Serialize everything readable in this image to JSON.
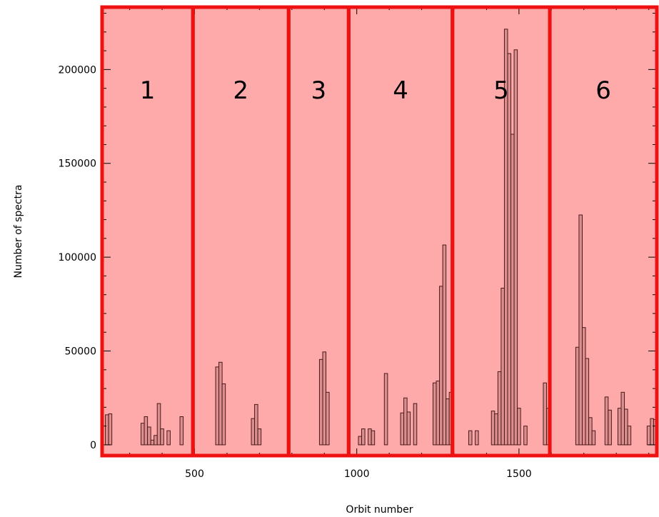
{
  "chart_data": {
    "type": "bar",
    "xlabel": "Orbit number",
    "ylabel": "Number of spectra",
    "xlim": [
      215,
      1925
    ],
    "ylim": [
      -6500,
      234000
    ],
    "xticks": [
      500,
      1000,
      1500
    ],
    "yticks": [
      0,
      50000,
      100000,
      150000,
      200000
    ],
    "bar_width": 10,
    "bars": [
      {
        "x": 230,
        "y": 16000
      },
      {
        "x": 240,
        "y": 16500
      },
      {
        "x": 340,
        "y": 11500
      },
      {
        "x": 350,
        "y": 15000
      },
      {
        "x": 360,
        "y": 9500
      },
      {
        "x": 370,
        "y": 2500
      },
      {
        "x": 380,
        "y": 5000
      },
      {
        "x": 390,
        "y": 22000
      },
      {
        "x": 400,
        "y": 8500
      },
      {
        "x": 420,
        "y": 7500
      },
      {
        "x": 460,
        "y": 15000
      },
      {
        "x": 570,
        "y": 41500
      },
      {
        "x": 580,
        "y": 44000
      },
      {
        "x": 590,
        "y": 32500
      },
      {
        "x": 680,
        "y": 14000
      },
      {
        "x": 690,
        "y": 21500
      },
      {
        "x": 700,
        "y": 8500
      },
      {
        "x": 890,
        "y": 45500
      },
      {
        "x": 900,
        "y": 49500
      },
      {
        "x": 910,
        "y": 28000
      },
      {
        "x": 1010,
        "y": 4500
      },
      {
        "x": 1020,
        "y": 8500
      },
      {
        "x": 1040,
        "y": 8500
      },
      {
        "x": 1050,
        "y": 7500
      },
      {
        "x": 1090,
        "y": 38000
      },
      {
        "x": 1140,
        "y": 17000
      },
      {
        "x": 1150,
        "y": 25000
      },
      {
        "x": 1160,
        "y": 17500
      },
      {
        "x": 1180,
        "y": 22000
      },
      {
        "x": 1240,
        "y": 33000
      },
      {
        "x": 1250,
        "y": 34000
      },
      {
        "x": 1260,
        "y": 84500
      },
      {
        "x": 1270,
        "y": 106500
      },
      {
        "x": 1280,
        "y": 24500
      },
      {
        "x": 1290,
        "y": 28000
      },
      {
        "x": 1350,
        "y": 7500
      },
      {
        "x": 1370,
        "y": 7500
      },
      {
        "x": 1420,
        "y": 18000
      },
      {
        "x": 1430,
        "y": 16500
      },
      {
        "x": 1440,
        "y": 39000
      },
      {
        "x": 1450,
        "y": 83500
      },
      {
        "x": 1460,
        "y": 221500
      },
      {
        "x": 1470,
        "y": 208500
      },
      {
        "x": 1480,
        "y": 165500
      },
      {
        "x": 1490,
        "y": 210500
      },
      {
        "x": 1500,
        "y": 19500
      },
      {
        "x": 1520,
        "y": 10000
      },
      {
        "x": 1580,
        "y": 33000
      },
      {
        "x": 1590,
        "y": 19500
      },
      {
        "x": 1680,
        "y": 52000
      },
      {
        "x": 1690,
        "y": 122500
      },
      {
        "x": 1700,
        "y": 62500
      },
      {
        "x": 1710,
        "y": 46000
      },
      {
        "x": 1720,
        "y": 14500
      },
      {
        "x": 1730,
        "y": 7500
      },
      {
        "x": 1770,
        "y": 25500
      },
      {
        "x": 1780,
        "y": 18500
      },
      {
        "x": 1810,
        "y": 19500
      },
      {
        "x": 1820,
        "y": 28000
      },
      {
        "x": 1830,
        "y": 19000
      },
      {
        "x": 1840,
        "y": 10000
      },
      {
        "x": 1900,
        "y": 10000
      },
      {
        "x": 1910,
        "y": 14000
      },
      {
        "x": 1920,
        "y": 13500
      }
    ],
    "regions": [
      {
        "label": "1",
        "x_start": 215,
        "x_end": 495
      },
      {
        "label": "2",
        "x_start": 495,
        "x_end": 790
      },
      {
        "label": "3",
        "x_start": 790,
        "x_end": 975
      },
      {
        "label": "4",
        "x_start": 975,
        "x_end": 1295
      },
      {
        "label": "5",
        "x_start": 1295,
        "x_end": 1595
      },
      {
        "label": "6",
        "x_start": 1595,
        "x_end": 1925
      }
    ],
    "colors": {
      "region_fill": "#ffaaaa",
      "region_border": "#ee1111",
      "bar_fill": "#dd8f8f",
      "bar_stroke": "#4a1a1a",
      "axis": "#000000"
    }
  }
}
